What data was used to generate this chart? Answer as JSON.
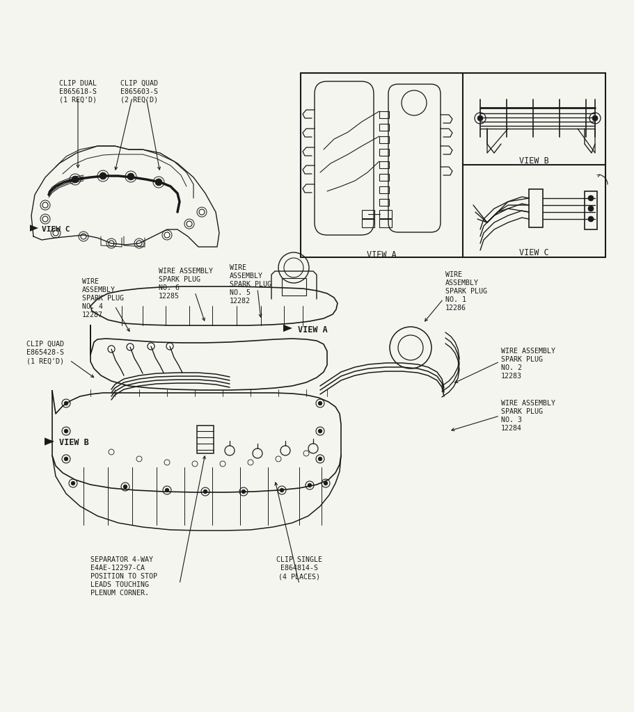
{
  "bg": "#F5F5F0",
  "lc": "#1a1a1a",
  "tc": "#1a1a1a",
  "fs": 7.2,
  "mono": "DejaVu Sans Mono",
  "labels": {
    "clip_dual": "CLIP DUAL\nE865618-S\n(1 REQ'D)",
    "clip_quad_top": "CLIP QUAD\nE865603-S\n(2 REQ'D)",
    "view_c_top": "VIEW C",
    "wire4": "WIRE\nASSEMBLY\nSPARK PLUG\nNO. 4\n12287",
    "wire6": "WIRE ASSEMBLY\nSPARK PLUG\nNO. 6\n12285",
    "wire5": "WIRE\nASSEMBLY\nSPARK PLUG\nNO. 5\n12282",
    "view_a_mid": "VIEW A",
    "wire1": "WIRE\nASSEMBLY\nSPARK PLUG\nNO. 1\n12286",
    "clip_quad_mid": "CLIP QUAD\nE865428-S\n(1 REQ'D)",
    "view_b": "VIEW B",
    "wire2": "WIRE ASSEMBLY\nSPARK PLUG\nNO. 2\n12283",
    "wire3": "WIRE ASSEMBLY\nSPARK PLUG\nNO. 3\n12284",
    "separator": "SEPARATOR 4-WAY\nE4AE-12297-CA\nPOSITION TO STOP\nLEADS TOUCHING\nPLENUM CORNER.",
    "clip_single": "CLIP SINGLE\nE864814-S\n(4 PLACES)",
    "view_a_inset": "VIEW A",
    "view_b_inset": "VIEW B",
    "view_c_inset": "VIEW C"
  }
}
